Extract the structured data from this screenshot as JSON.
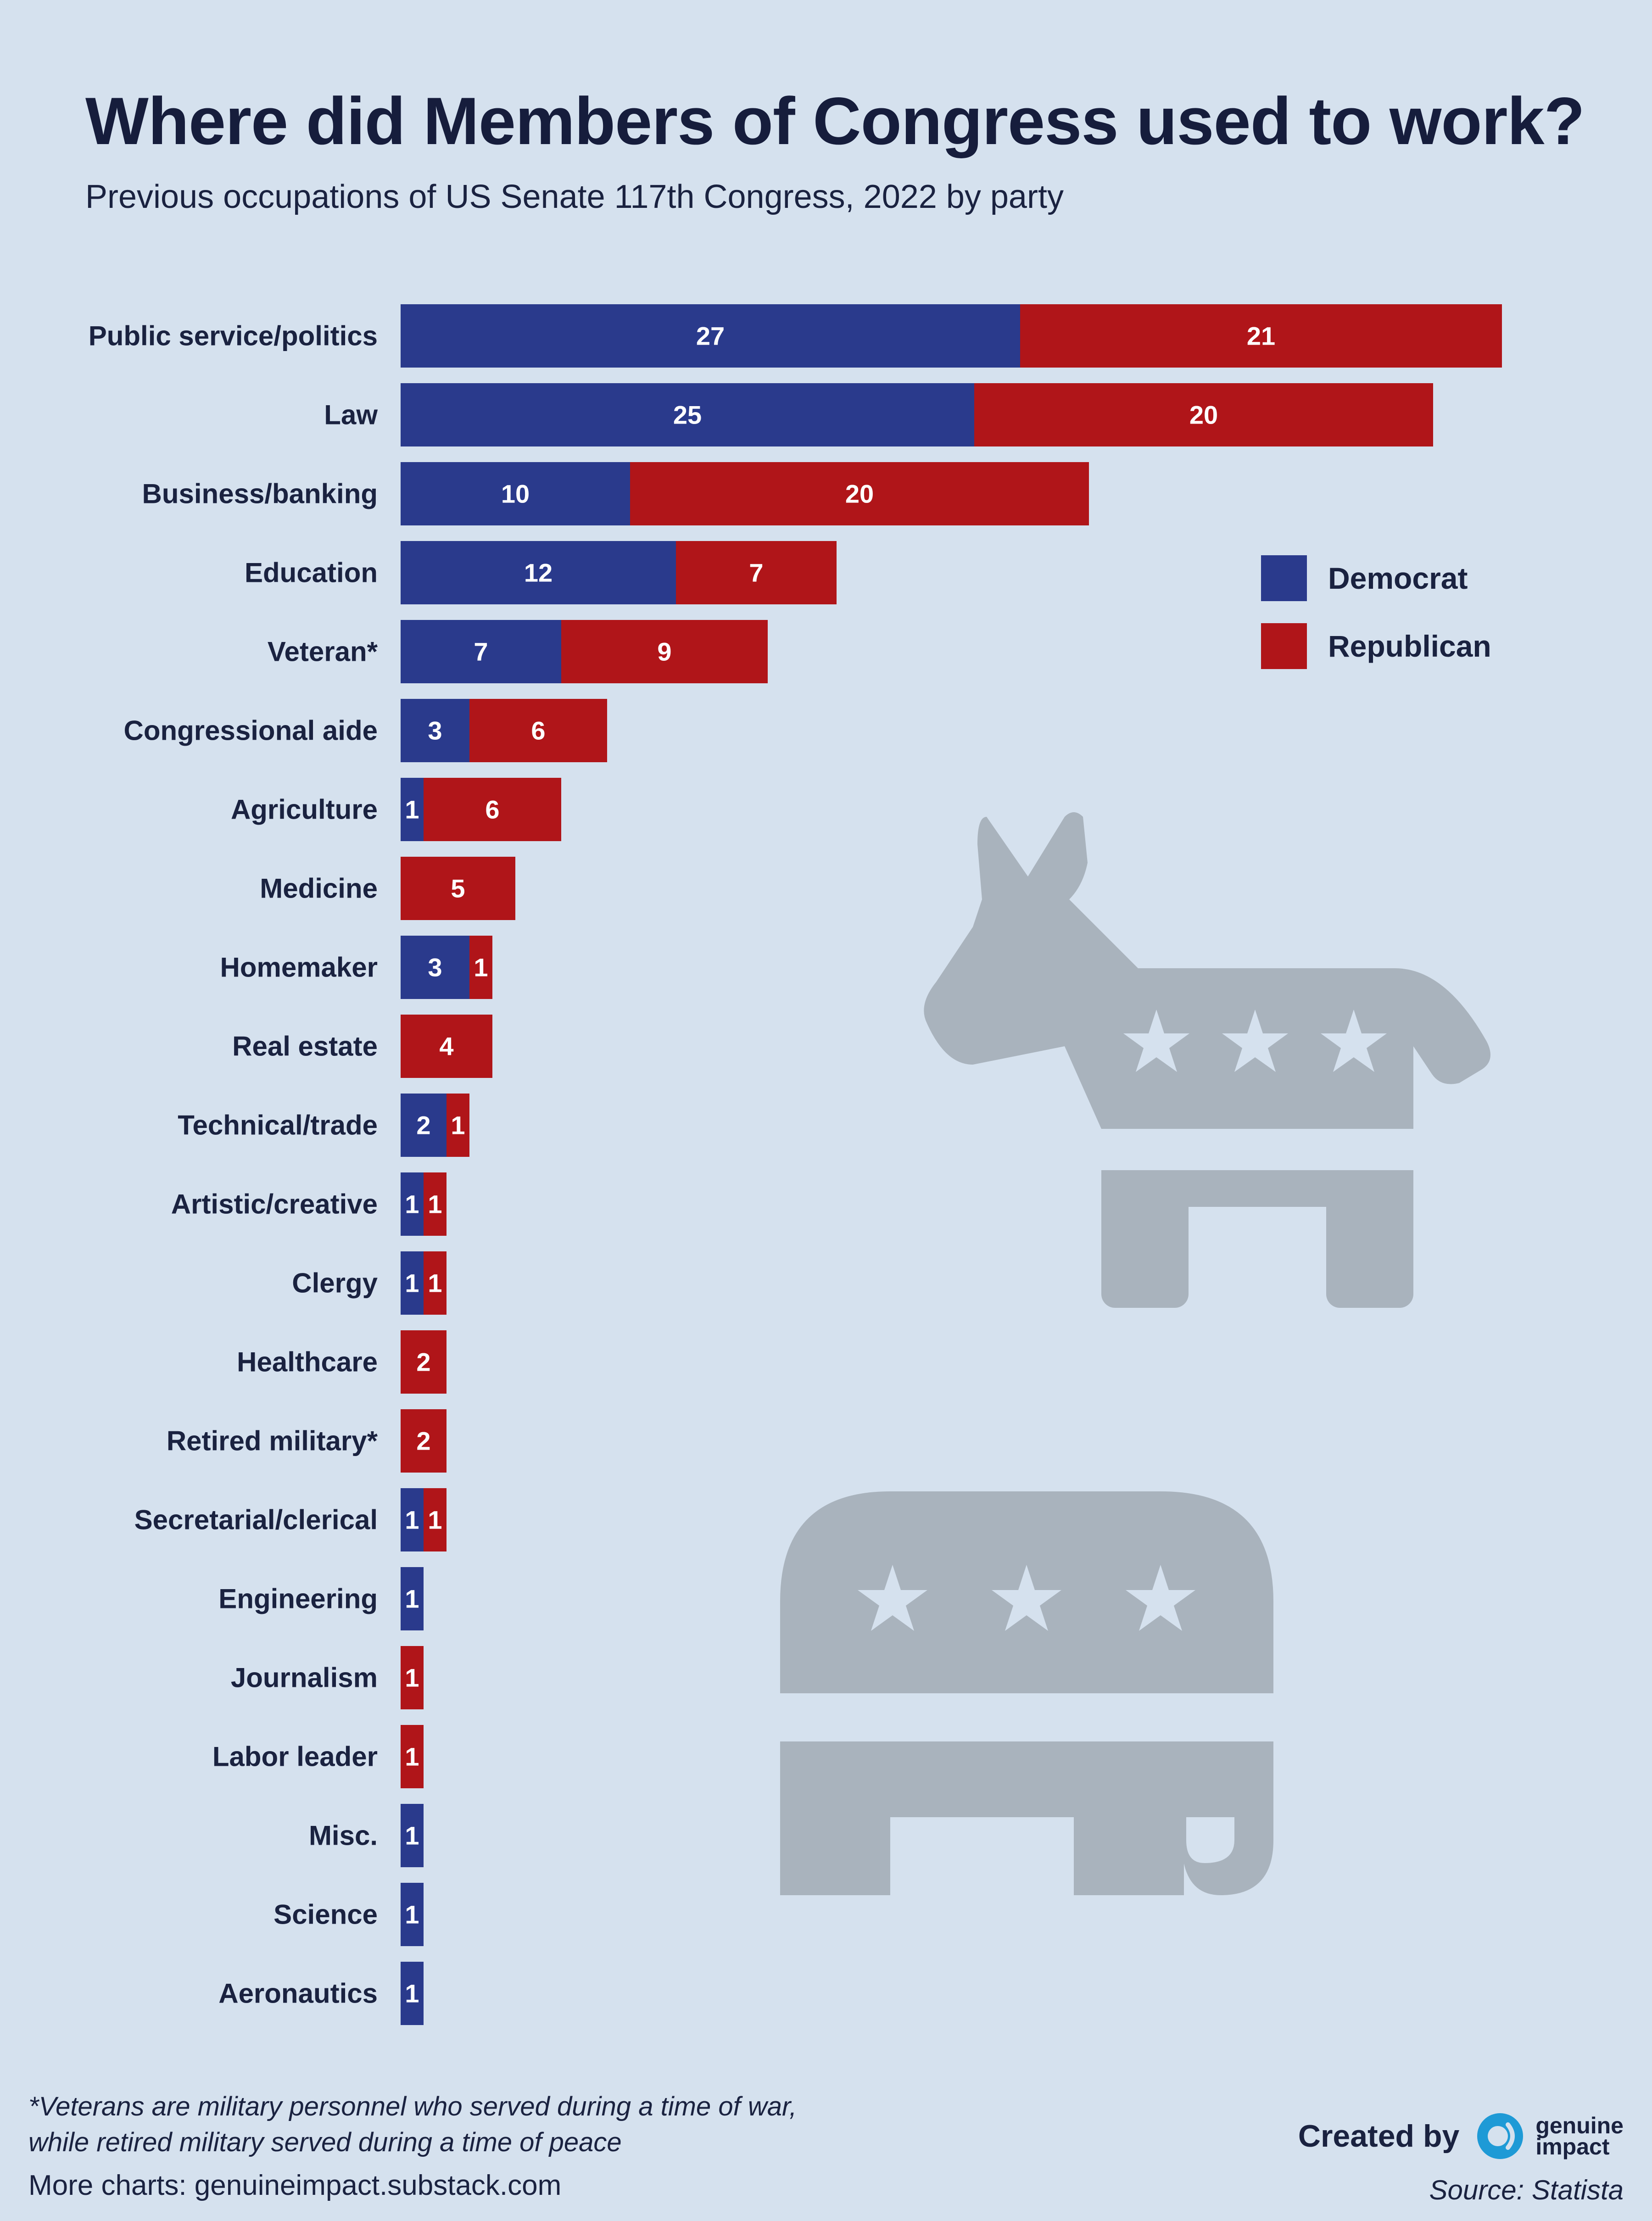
{
  "header": {
    "title": "Where did Members of Congress used to work?",
    "subtitle": "Previous occupations of US Senate 117th Congress, 2022 by party"
  },
  "legend": {
    "democrat": "Democrat",
    "republican": "Republican"
  },
  "colors": {
    "democrat": "#2a3a8c",
    "republican": "#b01519",
    "background": "#d5e1ee",
    "mascot": "#a9b3bd"
  },
  "mascots": {
    "donkey": "democrat-donkey-icon",
    "elephant": "republican-elephant-icon"
  },
  "footer": {
    "footnote": "*Veterans are military personnel who served during a time of war,\nwhile retired military served during a time of peace",
    "more_charts": "More charts: genuineimpact.substack.com",
    "created_by": "Created by",
    "brand_line1": "genuine",
    "brand_line2": "impact",
    "source": "Source: Statista"
  },
  "chart_data": {
    "type": "bar",
    "orientation": "horizontal",
    "stacked": true,
    "title": "Where did Members of Congress used to work?",
    "subtitle": "Previous occupations of US Senate 117th Congress, 2022 by party",
    "categories": [
      "Public service/politics",
      "Law",
      "Business/banking",
      "Education",
      "Veteran*",
      "Congressional aide",
      "Agriculture",
      "Medicine",
      "Homemaker",
      "Real estate",
      "Technical/trade",
      "Artistic/creative",
      "Clergy",
      "Healthcare",
      "Retired military*",
      "Secretarial/clerical",
      "Engineering",
      "Journalism",
      "Labor leader",
      "Misc.",
      "Science",
      "Aeronautics"
    ],
    "series": [
      {
        "name": "Democrat",
        "color": "#2a3a8c",
        "values": [
          27,
          25,
          10,
          12,
          7,
          3,
          1,
          0,
          3,
          0,
          2,
          1,
          1,
          0,
          0,
          1,
          1,
          0,
          0,
          1,
          1,
          1
        ]
      },
      {
        "name": "Republican",
        "color": "#b01519",
        "values": [
          21,
          20,
          20,
          7,
          9,
          6,
          6,
          5,
          1,
          4,
          1,
          1,
          1,
          2,
          2,
          1,
          0,
          1,
          1,
          0,
          0,
          0
        ]
      }
    ],
    "xlim": [
      0,
      48
    ],
    "grid": false,
    "legend_position": "right"
  }
}
